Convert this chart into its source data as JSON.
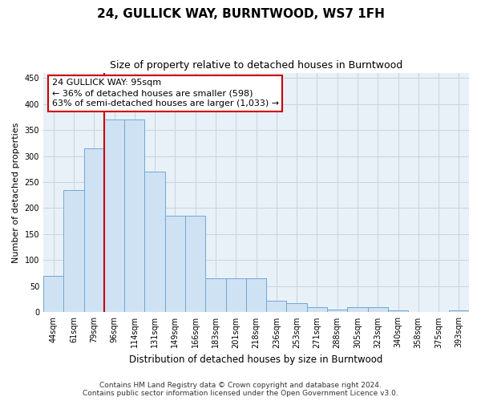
{
  "title": "24, GULLICK WAY, BURNTWOOD, WS7 1FH",
  "subtitle": "Size of property relative to detached houses in Burntwood",
  "xlabel": "Distribution of detached houses by size in Burntwood",
  "ylabel": "Number of detached properties",
  "categories": [
    "44sqm",
    "61sqm",
    "79sqm",
    "96sqm",
    "114sqm",
    "131sqm",
    "149sqm",
    "166sqm",
    "183sqm",
    "201sqm",
    "218sqm",
    "236sqm",
    "253sqm",
    "271sqm",
    "288sqm",
    "305sqm",
    "323sqm",
    "340sqm",
    "358sqm",
    "375sqm",
    "393sqm"
  ],
  "values": [
    70,
    235,
    315,
    370,
    370,
    270,
    185,
    185,
    65,
    65,
    65,
    22,
    18,
    10,
    6,
    10,
    10,
    4,
    0,
    0,
    4
  ],
  "bar_color": "#cfe2f3",
  "bar_edge_color": "#6fa8d4",
  "vline_x_index": 2.5,
  "vline_color": "#cc0000",
  "annotation_text": "24 GULLICK WAY: 95sqm\n← 36% of detached houses are smaller (598)\n63% of semi-detached houses are larger (1,033) →",
  "annotation_box_color": "white",
  "annotation_box_edge_color": "#cc0000",
  "footer_line1": "Contains HM Land Registry data © Crown copyright and database right 2024.",
  "footer_line2": "Contains public sector information licensed under the Open Government Licence v3.0.",
  "yticks": [
    0,
    50,
    100,
    150,
    200,
    250,
    300,
    350,
    400,
    450
  ],
  "ylim": [
    0,
    460
  ],
  "plot_bg_color": "#e8f0f8",
  "fig_bg_color": "#ffffff",
  "grid_color": "#c8d4e0",
  "title_fontsize": 11,
  "subtitle_fontsize": 9,
  "ylabel_fontsize": 8,
  "xlabel_fontsize": 8.5,
  "tick_fontsize": 7,
  "annot_fontsize": 8,
  "footer_fontsize": 6.5
}
